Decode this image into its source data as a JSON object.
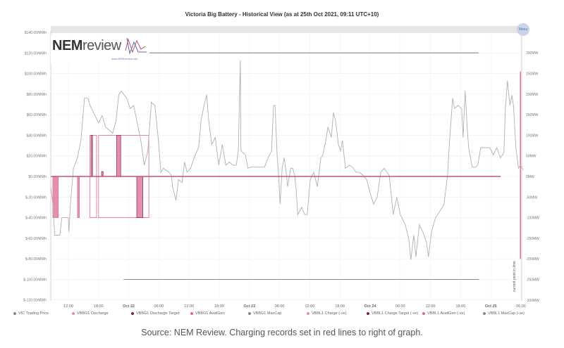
{
  "title": "Victoria Big Battery - Historical View (as at 25th Oct 2021, 09:11 UTC+10)",
  "logo": {
    "text_bold": "NEM",
    "text_light": "review",
    "url": "www.NEMreview.info",
    "byline": "by Global-Roam"
  },
  "menu_label": "Menu",
  "caption": "Source: NEM Review. Charging records set in red lines to right of graph.",
  "colors": {
    "price": "#b5aeae",
    "charge": "#e58fb0",
    "discharge_target": "#8a1a4a",
    "availgen": "#d96a92",
    "maxcap": "#666666",
    "zero_line": "#c0507a",
    "record": "#e0607a"
  },
  "chart_data": {
    "type": "line",
    "title": "Victoria Big Battery - Historical View (as at 25th Oct 2021, 09:11 UTC+10)",
    "x_unit": "hours since Oct 21 00:00",
    "xlim": [
      8.5,
      102.7
    ],
    "x_ticks": [
      {
        "h": 12,
        "label": "12:00",
        "bold": false
      },
      {
        "h": 18,
        "label": "18:00",
        "bold": false
      },
      {
        "h": 24,
        "label": "Oct 22",
        "bold": true
      },
      {
        "h": 30,
        "label": "06:00",
        "bold": false
      },
      {
        "h": 36,
        "label": "12:00",
        "bold": false
      },
      {
        "h": 42,
        "label": "18:00",
        "bold": false
      },
      {
        "h": 48,
        "label": "Oct 23",
        "bold": true
      },
      {
        "h": 54,
        "label": "06:00",
        "bold": false
      },
      {
        "h": 60,
        "label": "12:00",
        "bold": false
      },
      {
        "h": 66,
        "label": "18:00",
        "bold": false
      },
      {
        "h": 72,
        "label": "Oct 24",
        "bold": true
      },
      {
        "h": 78,
        "label": "06:00",
        "bold": false
      },
      {
        "h": 84,
        "label": "12:00",
        "bold": false
      },
      {
        "h": 90,
        "label": "18:00",
        "bold": false
      },
      {
        "h": 96,
        "label": "Oct 25",
        "bold": true
      },
      {
        "h": 102,
        "label": "06:00",
        "bold": false
      }
    ],
    "y_left": {
      "ylim": [
        -120,
        140
      ],
      "ticks": [
        140,
        120,
        100,
        80,
        60,
        40,
        20,
        0,
        -20,
        -40,
        -60,
        -80,
        -100,
        -120
      ],
      "labels": [
        "$140.00/MWh",
        "$120.00/MWh",
        "$100.00/MWh",
        "$80.00/MWh",
        "$60.00/MWh",
        "$40.00/MWh",
        "$20.00/MWh",
        "$0.00/MWh",
        "$-20.00/MWh",
        "$-40.00/MWh",
        "$-60.00/MWh",
        "$-80.00/MWh",
        "$-100.00/MWh",
        "$-120.00/MWh"
      ]
    },
    "y_right": {
      "ylim": [
        -300,
        350
      ],
      "ticks": [
        300,
        250,
        200,
        150,
        100,
        50,
        0,
        -50,
        -100,
        -150,
        -200,
        -250,
        -300
      ],
      "labels": [
        "300MW",
        "250MW",
        "200MW",
        "150MW",
        "100MW",
        "50MW",
        "0MW",
        "-50MW",
        "-100MW",
        "-150MW",
        "-200MW",
        "-250MW",
        "-300MW"
      ]
    },
    "legend": [
      "VIC Trading Price",
      "VBBG1 Discharge",
      "VBBG1 Discharge Target",
      "VBBG1 AvailGen",
      "VBBG1 MaxCap",
      "VBBL1 Charge (-ve)",
      "VBBL1 Charge Target (-ve)",
      "VBBL1 AvailGen (-ve)",
      "VBBL1 MaxCap (-ve)"
    ],
    "annotation": "current point in time",
    "price_series": [
      [
        8.5,
        -10
      ],
      [
        8.9,
        -27
      ],
      [
        9.3,
        -57
      ],
      [
        10.3,
        -57
      ],
      [
        10.7,
        -40
      ],
      [
        12,
        -40
      ],
      [
        12.1,
        -54
      ],
      [
        12.4,
        -27
      ],
      [
        13,
        8
      ],
      [
        13.8,
        18
      ],
      [
        14.5,
        35
      ],
      [
        15.2,
        76
      ],
      [
        15.9,
        76
      ],
      [
        16.3,
        69
      ],
      [
        17,
        62
      ],
      [
        18,
        52
      ],
      [
        18.7,
        59
      ],
      [
        19.4,
        48
      ],
      [
        20.1,
        45
      ],
      [
        20.8,
        42
      ],
      [
        21.5,
        55
      ],
      [
        22,
        79
      ],
      [
        22.5,
        83
      ],
      [
        23.6,
        76
      ],
      [
        24.3,
        66
      ],
      [
        25,
        69
      ],
      [
        25.7,
        52
      ],
      [
        26.4,
        35
      ],
      [
        27.1,
        11
      ],
      [
        27.8,
        25
      ],
      [
        28.5,
        72
      ],
      [
        29.2,
        69
      ],
      [
        29.9,
        35
      ],
      [
        30.4,
        4
      ],
      [
        30.9,
        8
      ],
      [
        32,
        4
      ],
      [
        32.5,
        1
      ],
      [
        32.7,
        -10
      ],
      [
        33.4,
        -23
      ],
      [
        33.9,
        -3
      ],
      [
        34.6,
        -6
      ],
      [
        35.1,
        14
      ],
      [
        35.6,
        4
      ],
      [
        36.3,
        8
      ],
      [
        37,
        18
      ],
      [
        37.9,
        28
      ],
      [
        38.4,
        55
      ],
      [
        39.1,
        72
      ],
      [
        39.5,
        79
      ],
      [
        39.9,
        55
      ],
      [
        40.5,
        31
      ],
      [
        41.2,
        38
      ],
      [
        41.9,
        11
      ],
      [
        42.6,
        31
      ],
      [
        43.3,
        11
      ],
      [
        44,
        14
      ],
      [
        44.7,
        11
      ],
      [
        45.4,
        11
      ],
      [
        45.8,
        25
      ],
      [
        46.2,
        113
      ],
      [
        46.3,
        25
      ],
      [
        47.2,
        21
      ],
      [
        47.7,
        8
      ],
      [
        48.2,
        9
      ],
      [
        49.6,
        9
      ],
      [
        51,
        9
      ],
      [
        51.7,
        18
      ],
      [
        52.4,
        25
      ],
      [
        52.8,
        69
      ],
      [
        53.1,
        69
      ],
      [
        53.5,
        21
      ],
      [
        53.8,
        1
      ],
      [
        54.1,
        -27
      ],
      [
        54.5,
        8
      ],
      [
        54.9,
        18
      ],
      [
        55.3,
        4
      ],
      [
        55.6,
        -10
      ],
      [
        56.2,
        8
      ],
      [
        56.6,
        8
      ],
      [
        57,
        1
      ],
      [
        57.3,
        -13
      ],
      [
        57.6,
        -37
      ],
      [
        58.4,
        -30
      ],
      [
        59,
        -37
      ],
      [
        59.5,
        -37
      ],
      [
        60.1,
        -3
      ],
      [
        60.8,
        4
      ],
      [
        61.5,
        -10
      ],
      [
        62.2,
        18
      ],
      [
        62.6,
        21
      ],
      [
        63.2,
        35
      ],
      [
        63.6,
        48
      ],
      [
        64.3,
        38
      ],
      [
        64.7,
        62
      ],
      [
        65.1,
        55
      ],
      [
        65.7,
        31
      ],
      [
        66.1,
        25
      ],
      [
        66.5,
        35
      ],
      [
        67.1,
        8
      ],
      [
        67.8,
        11
      ],
      [
        68.5,
        9
      ],
      [
        69.2,
        4
      ],
      [
        69.9,
        4
      ],
      [
        70.6,
        1
      ],
      [
        71.3,
        -3
      ],
      [
        72,
        -16
      ],
      [
        72.7,
        -27
      ],
      [
        73.4,
        -20
      ],
      [
        74.1,
        4
      ],
      [
        74.8,
        8
      ],
      [
        75.8,
        1
      ],
      [
        76.6,
        -37
      ],
      [
        77.3,
        -20
      ],
      [
        78,
        -37
      ],
      [
        79,
        -47
      ],
      [
        79.7,
        -61
      ],
      [
        80.1,
        -81
      ],
      [
        80.7,
        -57
      ],
      [
        81.1,
        -78
      ],
      [
        81.8,
        -47
      ],
      [
        82.5,
        -54
      ],
      [
        83.2,
        -64
      ],
      [
        83.6,
        -78
      ],
      [
        84.2,
        -54
      ],
      [
        85,
        -40
      ],
      [
        86,
        -33
      ],
      [
        86.7,
        -27
      ],
      [
        87.4,
        1
      ],
      [
        87.8,
        35
      ],
      [
        88.4,
        76
      ],
      [
        88.8,
        66
      ],
      [
        89.5,
        69
      ],
      [
        90.2,
        66
      ],
      [
        90.5,
        38
      ],
      [
        90.9,
        83
      ],
      [
        91.3,
        48
      ],
      [
        91.6,
        28
      ],
      [
        92.3,
        9
      ],
      [
        93,
        9
      ],
      [
        93.4,
        11
      ],
      [
        94,
        28
      ],
      [
        95.1,
        28
      ],
      [
        95.8,
        28
      ],
      [
        96.5,
        21
      ],
      [
        97.2,
        28
      ],
      [
        97.9,
        18
      ],
      [
        98.6,
        23
      ],
      [
        98.9,
        66
      ],
      [
        99.3,
        93
      ],
      [
        99.8,
        69
      ],
      [
        100.2,
        79
      ],
      [
        100.5,
        69
      ],
      [
        101,
        28
      ],
      [
        101.5,
        8
      ],
      [
        101.9,
        11
      ],
      [
        102.5,
        6
      ]
    ],
    "charge_fills_mw": [
      [
        8.9,
        10.0,
        -100
      ],
      [
        13.8,
        14.2,
        -100
      ]
    ],
    "availgen_boxes_mw": [
      [
        16.3,
        17.6,
        100,
        -100
      ],
      [
        18.0,
        28.0,
        100,
        -100
      ]
    ],
    "discharge_spikes_mw": [
      [
        16.5,
        16.8,
        100
      ],
      [
        18.6,
        18.9,
        12
      ],
      [
        21.6,
        22.4,
        100
      ],
      [
        25.6,
        26.8,
        -100
      ]
    ],
    "maxcap_lines_mw": [
      [
        27.1,
        93.6,
        300
      ],
      [
        23.0,
        93.6,
        -250
      ]
    ],
    "record_line_mw": [
      101.9,
      255,
      -200
    ]
  }
}
